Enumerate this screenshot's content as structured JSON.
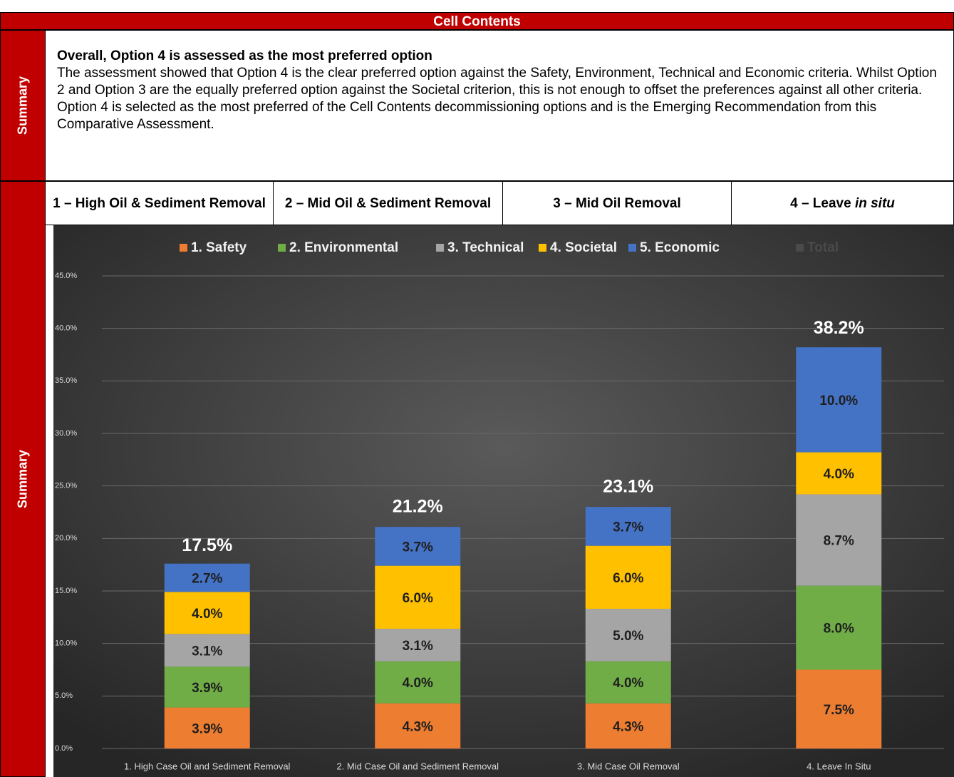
{
  "header": {
    "title": "Cell Contents"
  },
  "rows": [
    {
      "label": "Summary",
      "heading": "Overall, Option 4 is assessed as the most preferred option",
      "paragraphs": [
        "The assessment showed that Option 4 is the clear preferred option against the Safety, Environment, Technical and Economic criteria.  Whilst Option 2 and Option 3 are the equally preferred option against the Societal criterion, this is not enough to offset the preferences against all other criteria.",
        "Option 4 is selected as the most preferred of the Cell Contents decommissioning options and is the Emerging Recommendation from this Comparative Assessment."
      ]
    },
    {
      "label": "Summary",
      "columns": [
        {
          "text": "1 – High Oil & Sediment Removal"
        },
        {
          "text": "2 – Mid Oil & Sediment Removal"
        },
        {
          "text": "3 – Mid Oil Removal"
        },
        {
          "text": "4 – Leave ",
          "em": "in situ"
        }
      ]
    }
  ],
  "chart_data": {
    "type": "stacked_bar",
    "categories": [
      "1. High Case Oil and Sediment Removal",
      "2. Mid Case Oil and Sediment Removal",
      "3. Mid Case Oil Removal",
      "4. Leave In Situ"
    ],
    "series": [
      {
        "name": "1. Safety",
        "color": "#ED7D31",
        "values": [
          3.9,
          4.3,
          4.3,
          7.5
        ],
        "value_labels": [
          "3.9%",
          "4.3%",
          "4.3%",
          "7.5%"
        ]
      },
      {
        "name": "2. Environmental",
        "color": "#70AD47",
        "values": [
          3.9,
          4.0,
          4.0,
          8.0
        ],
        "value_labels": [
          "3.9%",
          "4.0%",
          "4.0%",
          "8.0%"
        ]
      },
      {
        "name": "3. Technical",
        "color": "#A5A5A5",
        "values": [
          3.1,
          3.1,
          5.0,
          8.7
        ],
        "value_labels": [
          "3.1%",
          "3.1%",
          "5.0%",
          "8.7%"
        ]
      },
      {
        "name": "4. Societal",
        "color": "#FFC000",
        "values": [
          4.0,
          6.0,
          6.0,
          4.0
        ],
        "value_labels": [
          "4.0%",
          "6.0%",
          "6.0%",
          "4.0%"
        ]
      },
      {
        "name": "5. Economic",
        "color": "#4472C4",
        "values": [
          2.7,
          3.7,
          3.7,
          10.0
        ],
        "value_labels": [
          "2.7%",
          "3.7%",
          "3.7%",
          "10.0%"
        ]
      }
    ],
    "total": {
      "name": "Total",
      "color": "#4a4a4a",
      "values": [
        17.5,
        21.2,
        23.1,
        38.2
      ],
      "value_labels": [
        "17.5%",
        "21.2%",
        "23.1%",
        "38.2%"
      ]
    },
    "ylim": [
      0,
      45
    ],
    "yticks": [
      {
        "value": 0,
        "label": "0.0%"
      },
      {
        "value": 5,
        "label": "5.0%"
      },
      {
        "value": 10,
        "label": "10.0%"
      },
      {
        "value": 15,
        "label": "15.0%"
      },
      {
        "value": 20,
        "label": "20.0%"
      },
      {
        "value": 25,
        "label": "25.0%"
      },
      {
        "value": 30,
        "label": "30.0%"
      },
      {
        "value": 35,
        "label": "35.0%"
      },
      {
        "value": 40,
        "label": "40.0%"
      },
      {
        "value": 45,
        "label": "45.0%"
      }
    ],
    "grid": true,
    "legend": "top"
  }
}
